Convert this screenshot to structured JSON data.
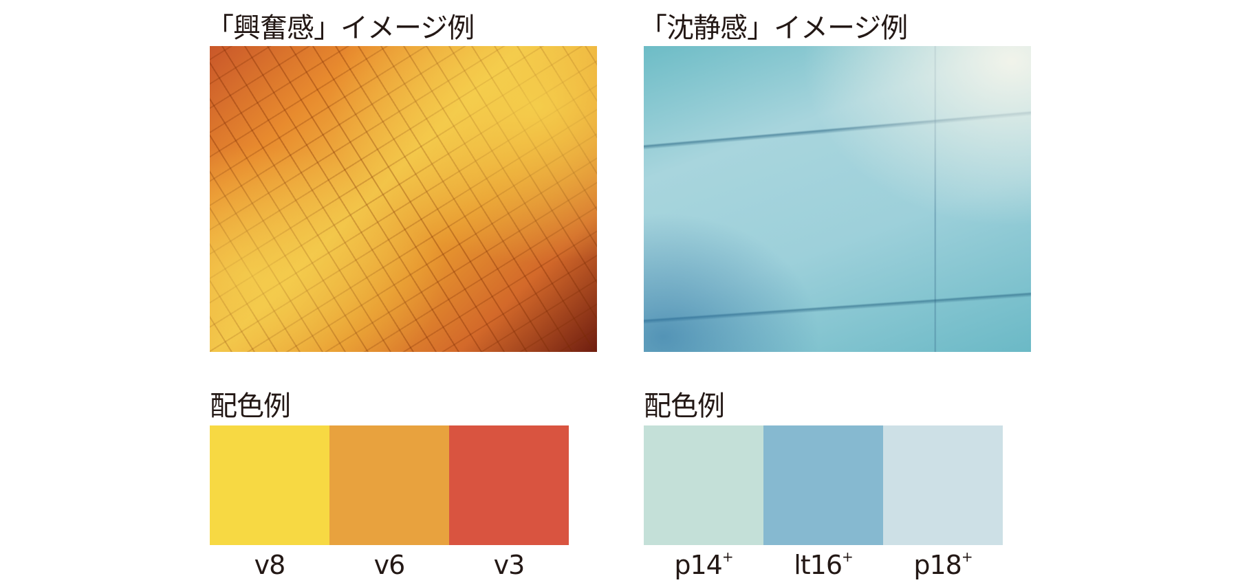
{
  "excitement": {
    "title": "「興奮感」イメージ例",
    "palette_heading": "配色例",
    "swatches": [
      {
        "label": "v8",
        "sup": "",
        "color": "#f7d943"
      },
      {
        "label": "v6",
        "sup": "",
        "color": "#e8a23e"
      },
      {
        "label": "v3",
        "sup": "",
        "color": "#d95440"
      }
    ]
  },
  "calm": {
    "title": "「沈静感」イメージ例",
    "palette_heading": "配色例",
    "swatches": [
      {
        "label": "p14",
        "sup": "+",
        "color": "#c4e0d8"
      },
      {
        "label": "lt16",
        "sup": "+",
        "color": "#86b9d0"
      },
      {
        "label": "p18",
        "sup": "+",
        "color": "#cde0e6"
      }
    ]
  }
}
